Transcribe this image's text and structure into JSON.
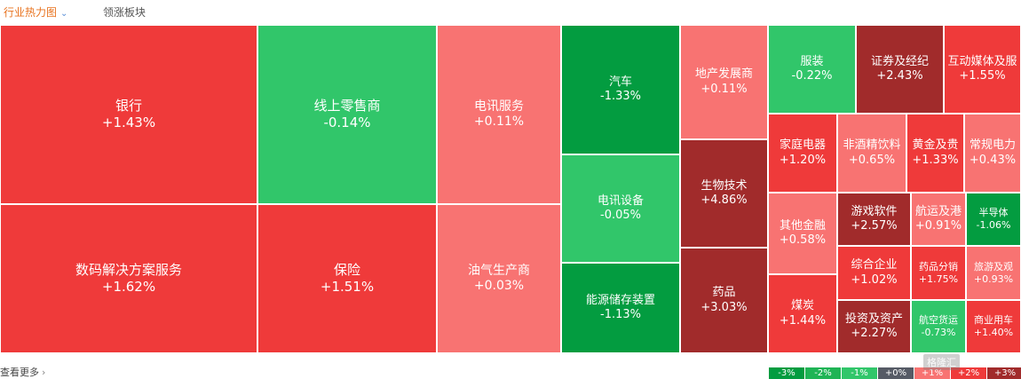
{
  "tabs": {
    "active_label": "行业热力图",
    "active_chevron": "chevron-down-icon",
    "second_label": "领涨板块"
  },
  "colors": {
    "up_strong": "#a12b2b",
    "up": "#ef3a3a",
    "up_light": "#f87372",
    "down_strong": "#039c40",
    "down": "#31c66a",
    "neutral": "#565b66"
  },
  "sectors": [
    {
      "name": "银行",
      "change": "+1.43%"
    },
    {
      "name": "数码解决方案服务",
      "change": "+1.62%"
    },
    {
      "name": "线上零售商",
      "change": "-0.14%"
    },
    {
      "name": "保险",
      "change": "+1.51%"
    },
    {
      "name": "电讯服务",
      "change": "+0.11%"
    },
    {
      "name": "油气生产商",
      "change": "+0.03%"
    },
    {
      "name": "汽车",
      "change": "-1.33%"
    },
    {
      "name": "电讯设备",
      "change": "-0.05%"
    },
    {
      "name": "能源储存装置",
      "change": "-1.13%"
    },
    {
      "name": "地产发展商",
      "change": "+0.11%"
    },
    {
      "name": "生物技术",
      "change": "+4.86%"
    },
    {
      "name": "药品",
      "change": "+3.03%"
    },
    {
      "name": "服装",
      "change": "-0.22%"
    },
    {
      "name": "证券及经纪",
      "change": "+2.43%"
    },
    {
      "name": "互动媒体及服",
      "change": "+1.55%"
    },
    {
      "name": "家庭电器",
      "change": "+1.20%"
    },
    {
      "name": "其他金融",
      "change": "+0.58%"
    },
    {
      "name": "煤炭",
      "change": "+1.44%"
    },
    {
      "name": "非酒精饮料",
      "change": "+0.65%"
    },
    {
      "name": "游戏软件",
      "change": "+2.57%"
    },
    {
      "name": "综合企业",
      "change": "+1.02%"
    },
    {
      "name": "投资及资产",
      "change": "+2.27%"
    },
    {
      "name": "黄金及贵",
      "change": "+1.33%"
    },
    {
      "name": "常规电力",
      "change": "+0.43%"
    },
    {
      "name": "航运及港",
      "change": "+0.91%"
    },
    {
      "name": "半导体",
      "change": "-1.06%"
    },
    {
      "name": "药品分销",
      "change": "+1.75%"
    },
    {
      "name": "旅游及观",
      "change": "+0.93%"
    },
    {
      "name": "航空货运",
      "change": "-0.73%"
    },
    {
      "name": "商业用车",
      "change": "+1.40%"
    }
  ],
  "footer": {
    "more_label": "查看更多",
    "more_arrow": "chevron-right-icon"
  },
  "legend": [
    {
      "label": "-3%",
      "color": "#039c40"
    },
    {
      "label": "-2%",
      "color": "#1fb455"
    },
    {
      "label": "-1%",
      "color": "#31c66a"
    },
    {
      "label": "+0%",
      "color": "#565b66"
    },
    {
      "label": "+1%",
      "color": "#f87372"
    },
    {
      "label": "+2%",
      "color": "#ef3a3a"
    },
    {
      "label": "+3%",
      "color": "#a12b2b"
    }
  ],
  "watermark": "格隆汇"
}
